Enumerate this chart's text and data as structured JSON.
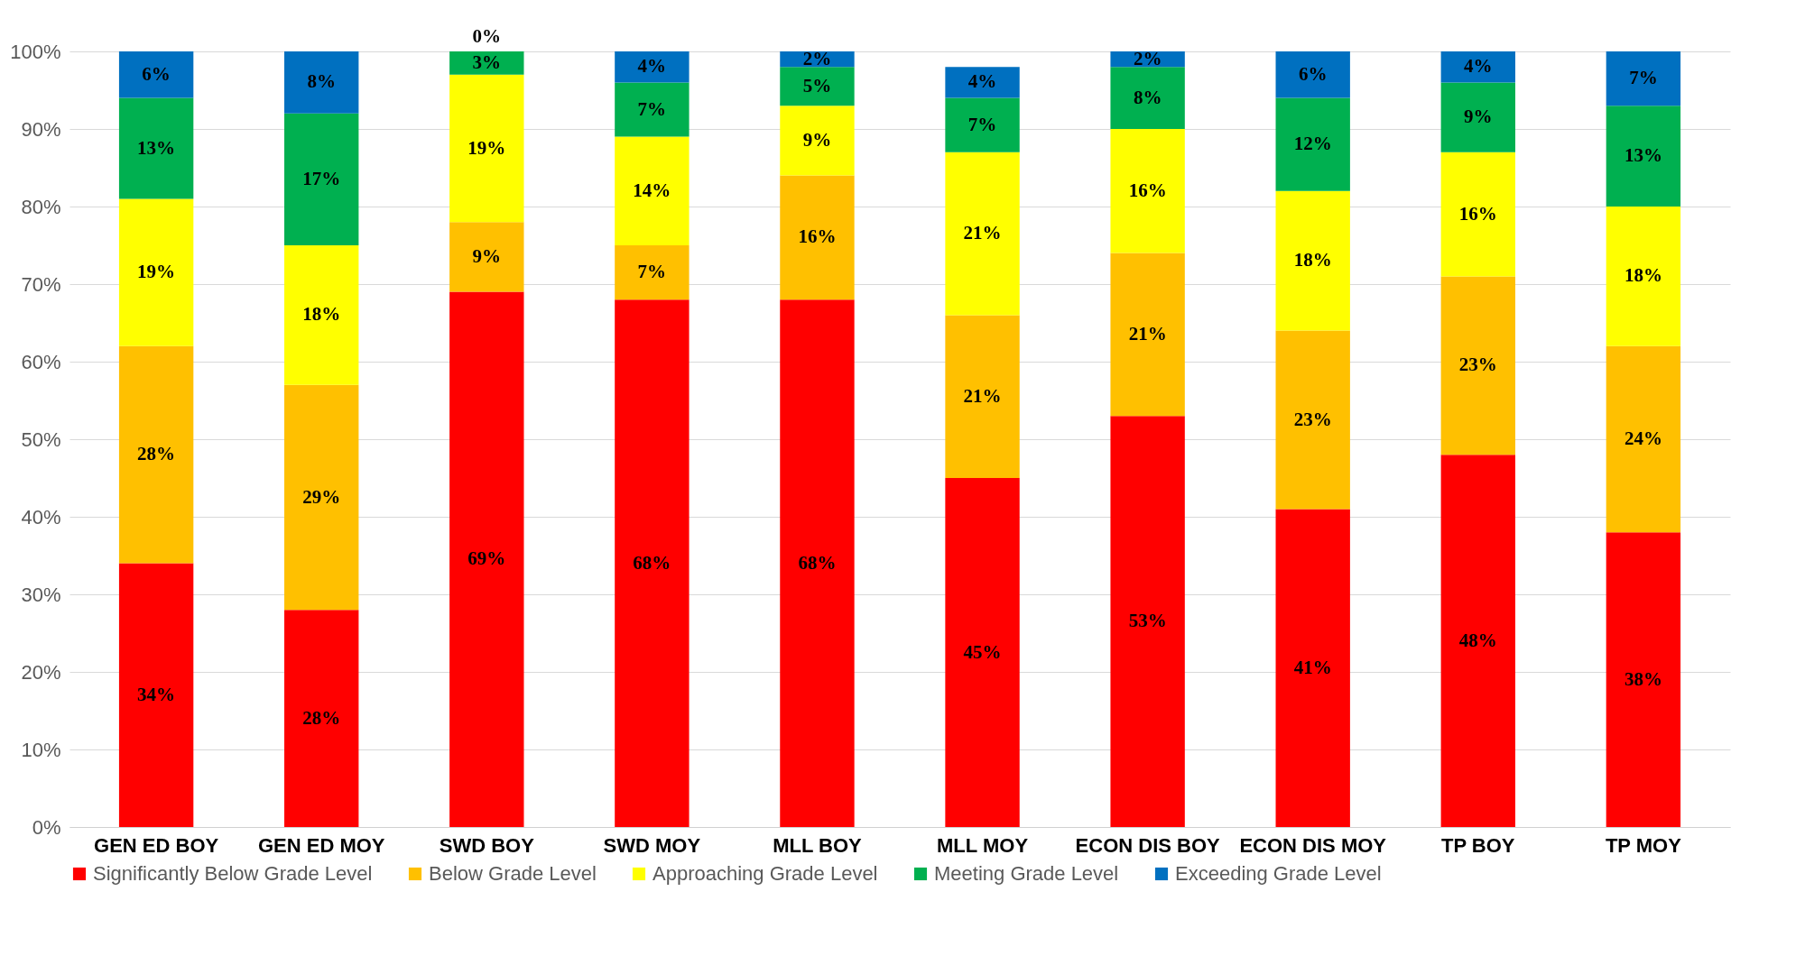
{
  "chart_data": {
    "type": "bar",
    "stacked": true,
    "categories": [
      "GEN ED BOY",
      "GEN ED MOY",
      "SWD BOY",
      "SWD MOY",
      "MLL BOY",
      "MLL MOY",
      "ECON DIS BOY",
      "ECON DIS MOY",
      "TP BOY",
      "TP MOY"
    ],
    "series": [
      {
        "name": "Significantly Below Grade Level",
        "color": "#ff0000",
        "values": [
          34,
          28,
          69,
          68,
          68,
          45,
          53,
          41,
          48,
          38
        ],
        "value_labels": [
          "34%",
          "28%",
          "69%",
          "68%",
          "68%",
          "45%",
          "53%",
          "41%",
          "48%",
          "38%"
        ]
      },
      {
        "name": "Below Grade Level",
        "color": "#ffc000",
        "values": [
          28,
          29,
          9,
          7,
          16,
          21,
          21,
          23,
          23,
          24
        ],
        "value_labels": [
          "28%",
          "29%",
          "9%",
          "7%",
          "16%",
          "21%",
          "21%",
          "23%",
          "23%",
          "24%"
        ]
      },
      {
        "name": "Approaching Grade Level",
        "color": "#ffff00",
        "values": [
          19,
          18,
          19,
          14,
          9,
          21,
          16,
          18,
          16,
          18
        ],
        "value_labels": [
          "19%",
          "18%",
          "19%",
          "14%",
          "9%",
          "21%",
          "16%",
          "18%",
          "16%",
          "18%"
        ]
      },
      {
        "name": "Meeting Grade Level",
        "color": "#00b050",
        "values": [
          13,
          17,
          3,
          7,
          5,
          7,
          8,
          12,
          9,
          13
        ],
        "value_labels": [
          "13%",
          "17%",
          "3%",
          "7%",
          "5%",
          "7%",
          "8%",
          "12%",
          "9%",
          "13%"
        ]
      },
      {
        "name": "Exceeding Grade Level",
        "color": "#0070c0",
        "values": [
          6,
          8,
          0,
          4,
          2,
          4,
          2,
          6,
          4,
          7
        ],
        "value_labels": [
          "6%",
          "8%",
          "0%",
          "4%",
          "2%",
          "4%",
          "2%",
          "6%",
          "4%",
          "7%"
        ]
      }
    ],
    "ylim": [
      0,
      100
    ],
    "yticks": [
      {
        "value": 0,
        "label": "0%"
      },
      {
        "value": 10,
        "label": "10%"
      },
      {
        "value": 20,
        "label": "20%"
      },
      {
        "value": 30,
        "label": "30%"
      },
      {
        "value": 40,
        "label": "40%"
      },
      {
        "value": 50,
        "label": "50%"
      },
      {
        "value": 60,
        "label": "60%"
      },
      {
        "value": 70,
        "label": "70%"
      },
      {
        "value": 80,
        "label": "80%"
      },
      {
        "value": 90,
        "label": "90%"
      },
      {
        "value": 100,
        "label": "100%"
      }
    ],
    "grid": "y",
    "legend": "bottom"
  }
}
